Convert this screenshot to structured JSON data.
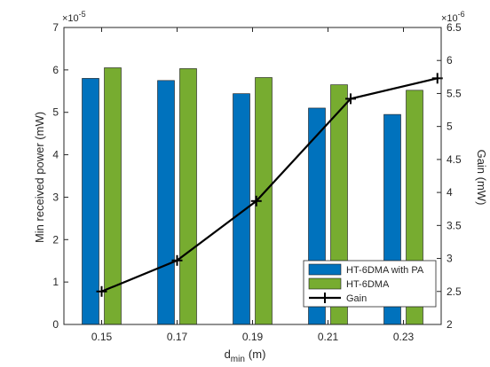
{
  "chart_data": {
    "type": "bar",
    "title": "",
    "xlabel": "d",
    "xlabel_sub": "min",
    "xlabel_unit": "(m)",
    "ylabel_left": "Min received power (mW)",
    "ylabel_right": "Gain (mW)",
    "left_multiplier": "×10",
    "left_exponent": "-5",
    "right_multiplier": "×10",
    "right_exponent": "-6",
    "categories": [
      "0.15",
      "0.17",
      "0.19",
      "0.21",
      "0.23"
    ],
    "ylim_left": [
      0,
      7
    ],
    "yticks_left": [
      "0",
      "1",
      "2",
      "3",
      "4",
      "5",
      "6",
      "7"
    ],
    "ylim_right": [
      2,
      6.5
    ],
    "yticks_right": [
      "2",
      "2.5",
      "3",
      "3.5",
      "4",
      "4.5",
      "5",
      "5.5",
      "6",
      "6.5"
    ],
    "series": [
      {
        "name": "HT-6DMA with PA",
        "kind": "bar",
        "axis": "left",
        "color": "#0072BD",
        "values": [
          5.8,
          5.75,
          5.44,
          5.1,
          4.95
        ]
      },
      {
        "name": "HT-6DMA",
        "kind": "bar",
        "axis": "left",
        "color": "#77AC30",
        "values": [
          6.05,
          6.03,
          5.82,
          5.65,
          5.52
        ]
      },
      {
        "name": "Gain",
        "kind": "line",
        "axis": "right",
        "color": "#000000",
        "marker": "+",
        "x_offset": 0.3,
        "values": [
          2.5,
          2.97,
          3.87,
          5.42,
          5.73
        ]
      }
    ],
    "grid": false,
    "legend_position": "bottom-right"
  }
}
